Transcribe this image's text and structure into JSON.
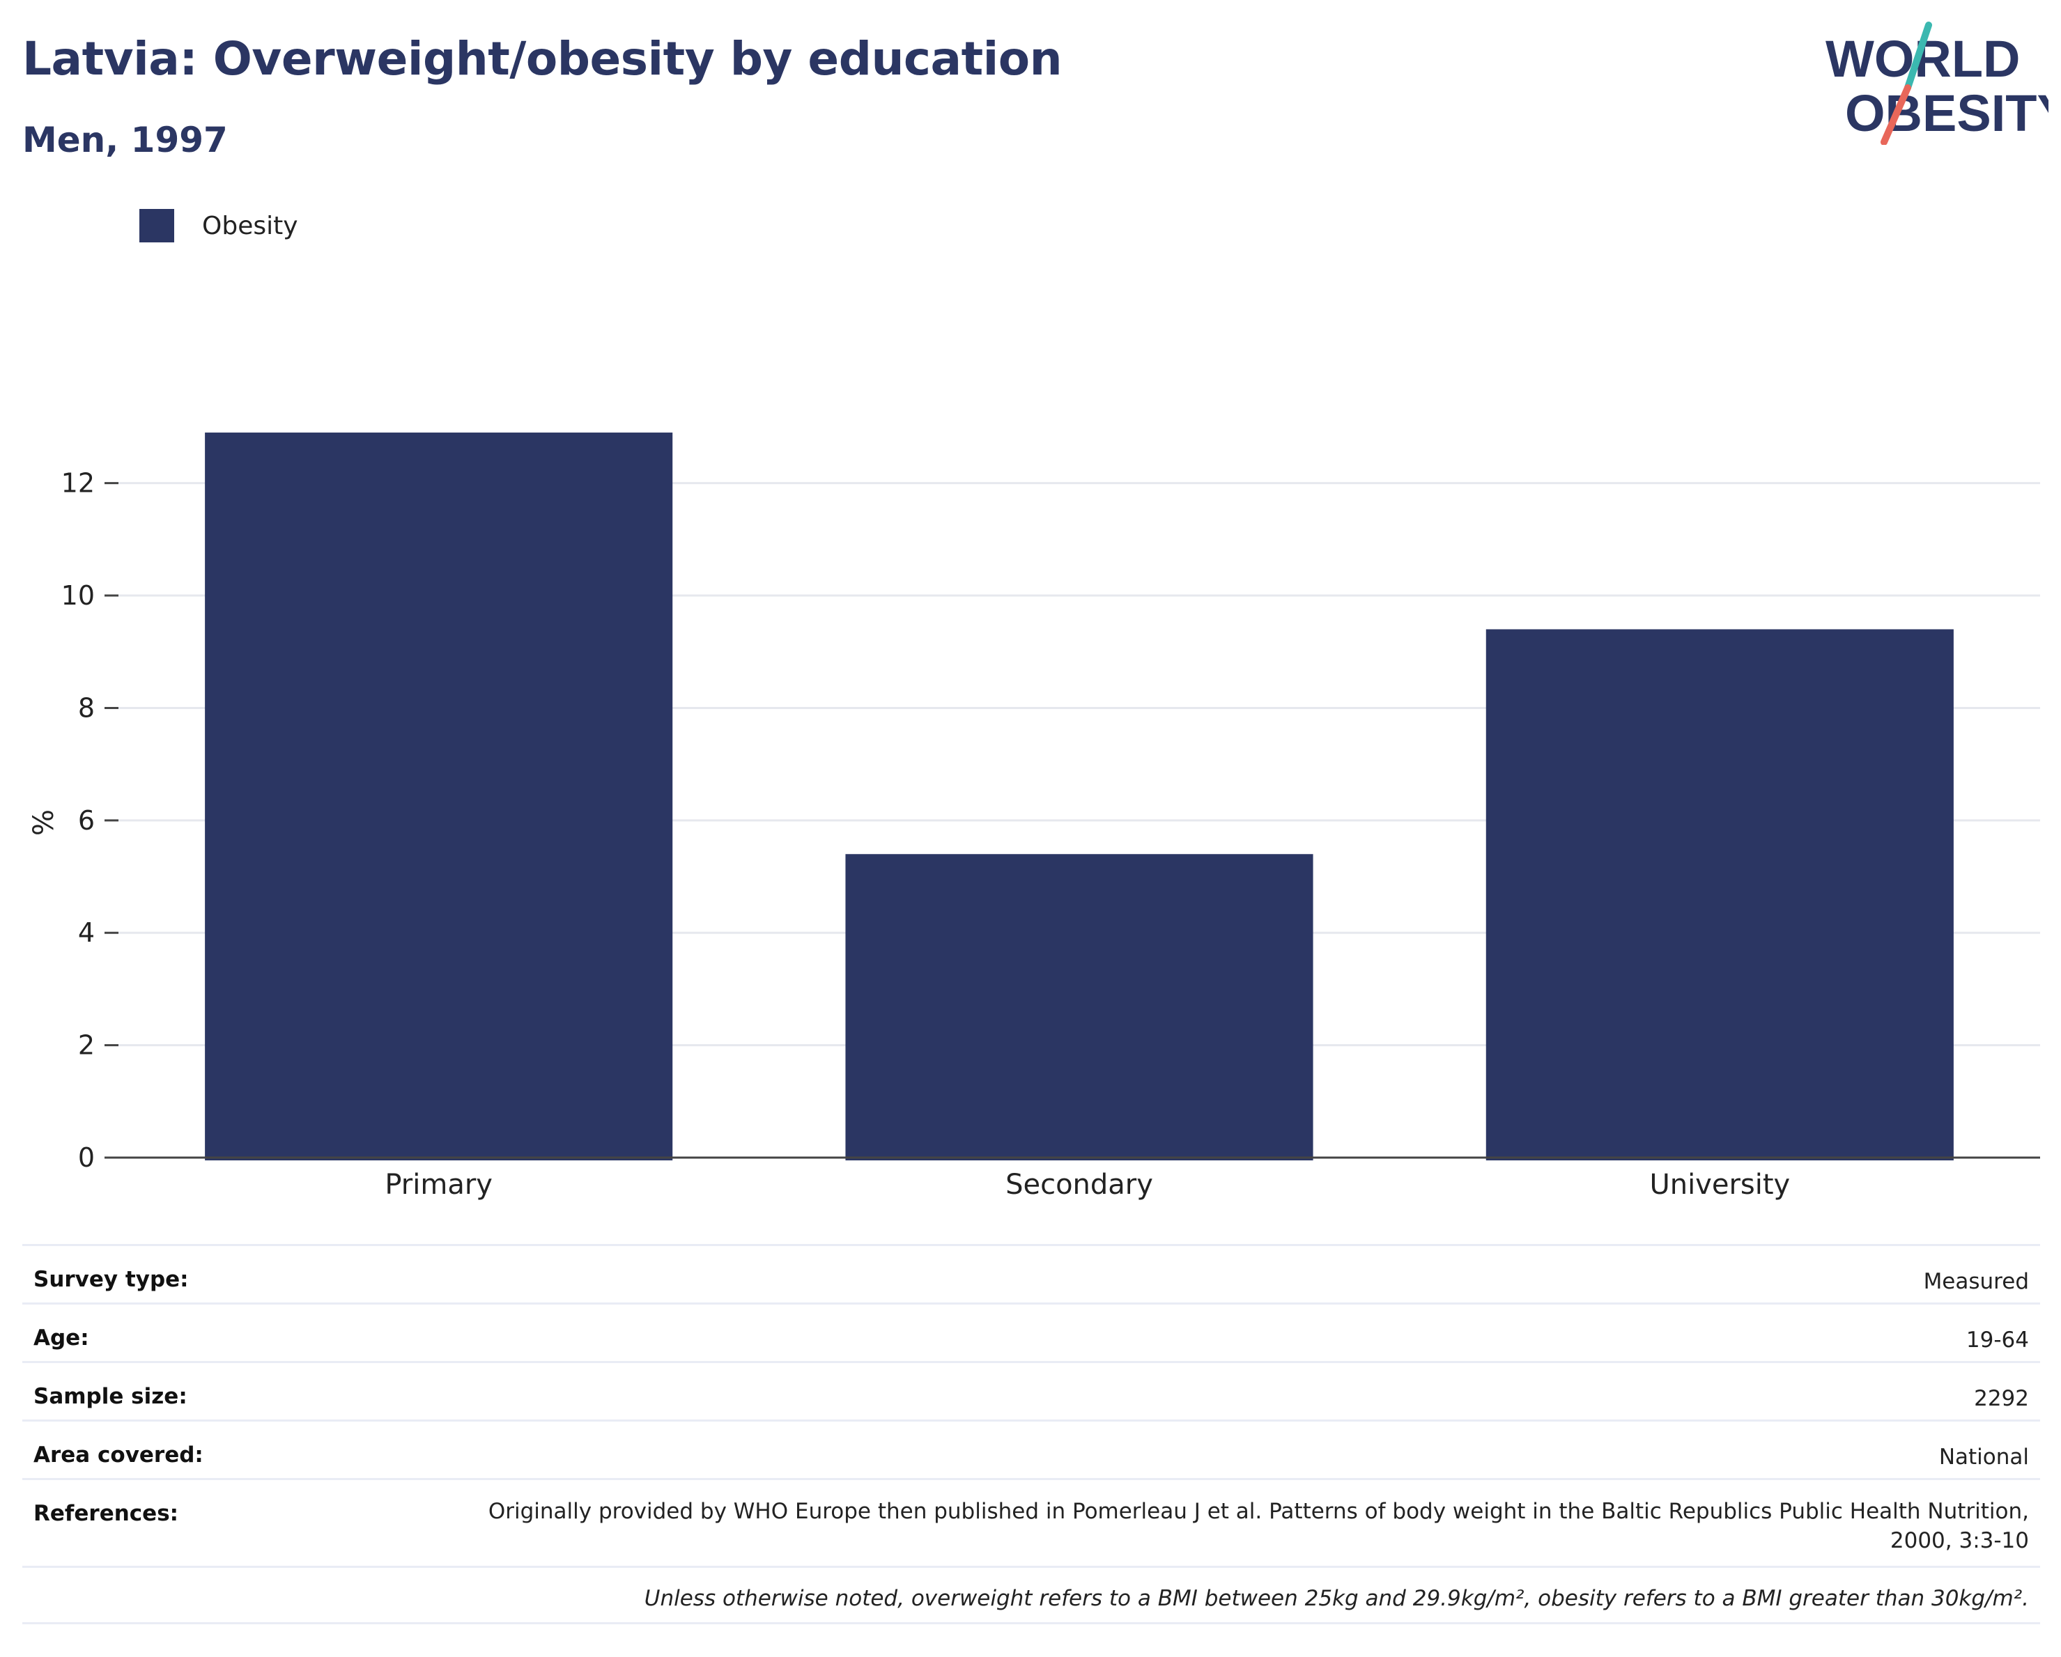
{
  "header": {
    "title": "Latvia: Overweight/obesity by education",
    "subtitle": "Men, 1997"
  },
  "logo": {
    "line1": "WORLD",
    "line2": "OBESITY",
    "slash_colors": [
      "#3bb8b0",
      "#e8675a"
    ],
    "text_color": "#2b3663"
  },
  "chart_data": {
    "type": "bar",
    "categories": [
      "Primary",
      "Secondary",
      "University"
    ],
    "series": [
      {
        "name": "Obesity",
        "values": [
          12.9,
          5.4,
          9.4
        ],
        "color": "#2b3663"
      }
    ],
    "ylabel": "%",
    "xlabel": "",
    "ylim": [
      0,
      14.4
    ],
    "yticks": [
      0,
      2,
      4,
      6,
      8,
      10,
      12
    ],
    "grid": true,
    "legend": "top-left"
  },
  "meta": {
    "rows": [
      {
        "key": "Survey type:",
        "value": "Measured"
      },
      {
        "key": "Age:",
        "value": "19-64"
      },
      {
        "key": "Sample size:",
        "value": "2292"
      },
      {
        "key": "Area covered:",
        "value": "National"
      },
      {
        "key": "References:",
        "value": "Originally provided by WHO Europe then published in Pomerleau J et al. Patterns of body weight in the Baltic Republics Public Health Nutrition, 2000, 3:3-10"
      }
    ],
    "footnote": "Unless otherwise noted, overweight refers to a BMI between 25kg and 29.9kg/m², obesity refers to a BMI greater than 30kg/m²."
  }
}
